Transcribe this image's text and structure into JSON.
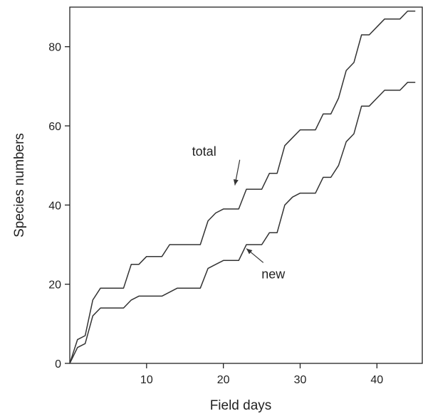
{
  "chart_data": {
    "type": "line",
    "xlabel": "Field days",
    "ylabel": "Species numbers",
    "xlim": [
      0,
      46
    ],
    "ylim": [
      0,
      90
    ],
    "xticks": [
      10,
      20,
      30,
      40
    ],
    "yticks": [
      0,
      20,
      40,
      60,
      80
    ],
    "grid": false,
    "legend": "none",
    "series": [
      {
        "name": "total",
        "points": [
          [
            0,
            0
          ],
          [
            1,
            6
          ],
          [
            2,
            7
          ],
          [
            3,
            16
          ],
          [
            4,
            19
          ],
          [
            5,
            19
          ],
          [
            6,
            19
          ],
          [
            7,
            19
          ],
          [
            8,
            25
          ],
          [
            9,
            25
          ],
          [
            10,
            27
          ],
          [
            11,
            27
          ],
          [
            12,
            27
          ],
          [
            13,
            30
          ],
          [
            14,
            30
          ],
          [
            15,
            30
          ],
          [
            16,
            30
          ],
          [
            17,
            30
          ],
          [
            18,
            36
          ],
          [
            19,
            38
          ],
          [
            20,
            39
          ],
          [
            21,
            39
          ],
          [
            22,
            39
          ],
          [
            23,
            44
          ],
          [
            24,
            44
          ],
          [
            25,
            44
          ],
          [
            26,
            48
          ],
          [
            27,
            48
          ],
          [
            28,
            55
          ],
          [
            29,
            57
          ],
          [
            30,
            59
          ],
          [
            31,
            59
          ],
          [
            32,
            59
          ],
          [
            33,
            63
          ],
          [
            34,
            63
          ],
          [
            35,
            67
          ],
          [
            36,
            74
          ],
          [
            37,
            76
          ],
          [
            38,
            83
          ],
          [
            39,
            83
          ],
          [
            40,
            85
          ],
          [
            41,
            87
          ],
          [
            42,
            87
          ],
          [
            43,
            87
          ],
          [
            44,
            89
          ],
          [
            45,
            89
          ]
        ]
      },
      {
        "name": "new",
        "points": [
          [
            0,
            0
          ],
          [
            1,
            4
          ],
          [
            2,
            5
          ],
          [
            3,
            12
          ],
          [
            4,
            14
          ],
          [
            5,
            14
          ],
          [
            6,
            14
          ],
          [
            7,
            14
          ],
          [
            8,
            16
          ],
          [
            9,
            17
          ],
          [
            10,
            17
          ],
          [
            11,
            17
          ],
          [
            12,
            17
          ],
          [
            13,
            18
          ],
          [
            14,
            19
          ],
          [
            15,
            19
          ],
          [
            16,
            19
          ],
          [
            17,
            19
          ],
          [
            18,
            24
          ],
          [
            19,
            25
          ],
          [
            20,
            26
          ],
          [
            21,
            26
          ],
          [
            22,
            26
          ],
          [
            23,
            30
          ],
          [
            24,
            30
          ],
          [
            25,
            30
          ],
          [
            26,
            33
          ],
          [
            27,
            33
          ],
          [
            28,
            40
          ],
          [
            29,
            42
          ],
          [
            30,
            43
          ],
          [
            31,
            43
          ],
          [
            32,
            43
          ],
          [
            33,
            47
          ],
          [
            34,
            47
          ],
          [
            35,
            50
          ],
          [
            36,
            56
          ],
          [
            37,
            58
          ],
          [
            38,
            65
          ],
          [
            39,
            65
          ],
          [
            40,
            67
          ],
          [
            41,
            69
          ],
          [
            42,
            69
          ],
          [
            43,
            69
          ],
          [
            44,
            71
          ],
          [
            45,
            71
          ]
        ]
      }
    ],
    "annotations": [
      {
        "text": "total",
        "x": 17.5,
        "y": 52.5,
        "arrow_to": [
          21.5,
          45
        ]
      },
      {
        "text": "new",
        "x": 26.5,
        "y": 21.5,
        "arrow_to": [
          23,
          29
        ]
      }
    ]
  },
  "colors": {
    "line": "#333333",
    "axis": "#222222",
    "text": "#222222",
    "background": "#ffffff"
  }
}
